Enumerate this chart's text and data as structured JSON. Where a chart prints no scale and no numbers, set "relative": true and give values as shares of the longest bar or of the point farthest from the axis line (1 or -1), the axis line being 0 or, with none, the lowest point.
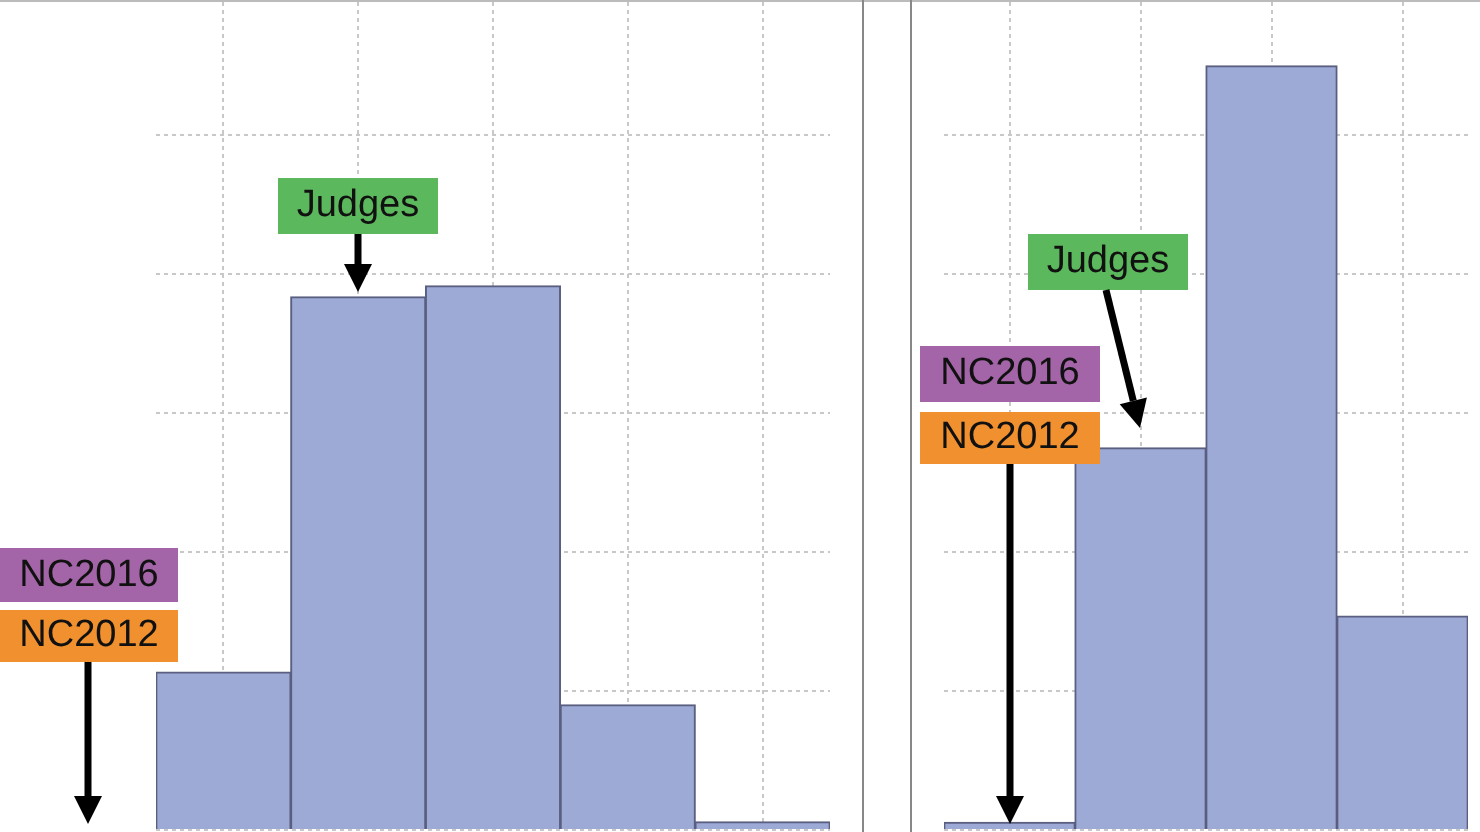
{
  "chart_data": [
    {
      "type": "bar",
      "categories": [
        null,
        null,
        null,
        null,
        null
      ],
      "values": [
        0.29,
        0.98,
        1,
        0.23,
        0.015
      ],
      "color": "#9daad6",
      "relative": true,
      "grid": true,
      "annotations": [
        "Judges",
        "NC2016",
        "NC2012"
      ]
    },
    {
      "type": "bar",
      "categories": [
        null,
        null,
        null,
        null
      ],
      "values": [
        0.01,
        0.5,
        1,
        0.28
      ],
      "color": "#9daad6",
      "relative": true,
      "grid": true,
      "annotations": [
        "Judges",
        "NC2016",
        "NC2012"
      ]
    }
  ]
}
